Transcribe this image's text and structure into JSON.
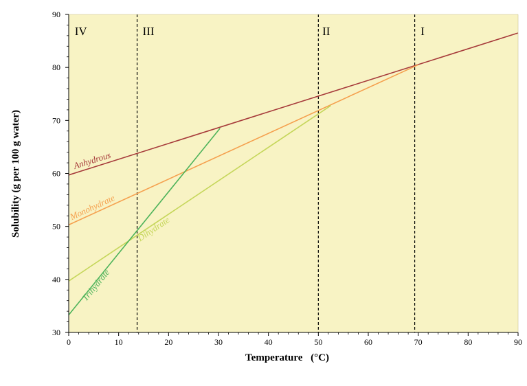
{
  "chart_data": {
    "type": "line",
    "title": "",
    "xlabel": "Temperature",
    "xlabel_unit": "(°C)",
    "ylabel": "Solubility  (g per 100 g water)",
    "xlim": [
      0,
      90
    ],
    "ylim": [
      30,
      90
    ],
    "x_ticks": [
      0,
      10,
      20,
      30,
      40,
      50,
      60,
      70,
      80,
      90
    ],
    "y_ticks": [
      30,
      40,
      50,
      60,
      70,
      80,
      90
    ],
    "grid": false,
    "background_color": "#f8f3c4",
    "series": [
      {
        "name": "Anhydrous",
        "color": "#a63a3a",
        "points": [
          [
            0,
            59.7
          ],
          [
            90,
            86.5
          ]
        ]
      },
      {
        "name": "Monohydrate",
        "color": "#f5a04e",
        "points": [
          [
            0,
            50.3
          ],
          [
            70,
            80.5
          ]
        ]
      },
      {
        "name": "Dihydrate",
        "color": "#c5d65a",
        "points": [
          [
            0,
            39.7
          ],
          [
            52.5,
            72.8
          ]
        ]
      },
      {
        "name": "Trihydrate",
        "color": "#4db35a",
        "points": [
          [
            0,
            33.3
          ],
          [
            30.3,
            68.5
          ]
        ]
      }
    ],
    "region_boundaries": [
      13.7,
      50,
      69.3
    ],
    "region_labels": [
      {
        "text": "IV",
        "x": 1.2
      },
      {
        "text": "III",
        "x": 14.8
      },
      {
        "text": "II",
        "x": 50.8
      },
      {
        "text": "I",
        "x": 70.5
      }
    ]
  }
}
